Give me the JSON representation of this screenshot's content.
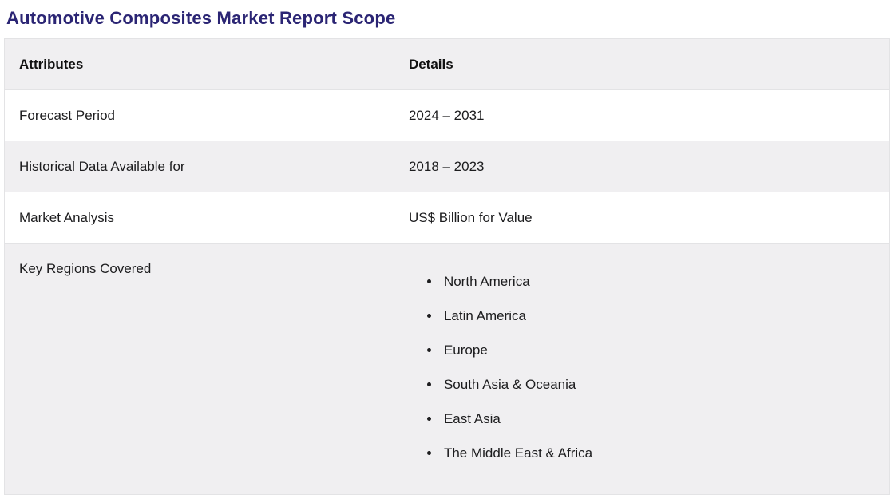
{
  "page": {
    "title": "Automotive Composites Market Report Scope"
  },
  "colors": {
    "title_text": "#2B2574",
    "header_row_bg": "#F0EFF1",
    "alt_row_bg": "#F0EFF1",
    "table_border": "#E3E3E5",
    "body_text": "#1D1D1F"
  },
  "table": {
    "columns": [
      "Attributes",
      "Details"
    ],
    "rows": [
      {
        "attribute": "Forecast Period",
        "details": "2024 – 2031"
      },
      {
        "attribute": "Historical Data Available for",
        "details": "2018 – 2023"
      },
      {
        "attribute": "Market Analysis",
        "details": "US$ Billion for Value"
      },
      {
        "attribute": "Key Regions Covered",
        "details_list": [
          "North America",
          "Latin America",
          "Europe",
          "South Asia & Oceania",
          "East Asia",
          "The Middle East & Africa"
        ]
      }
    ]
  }
}
